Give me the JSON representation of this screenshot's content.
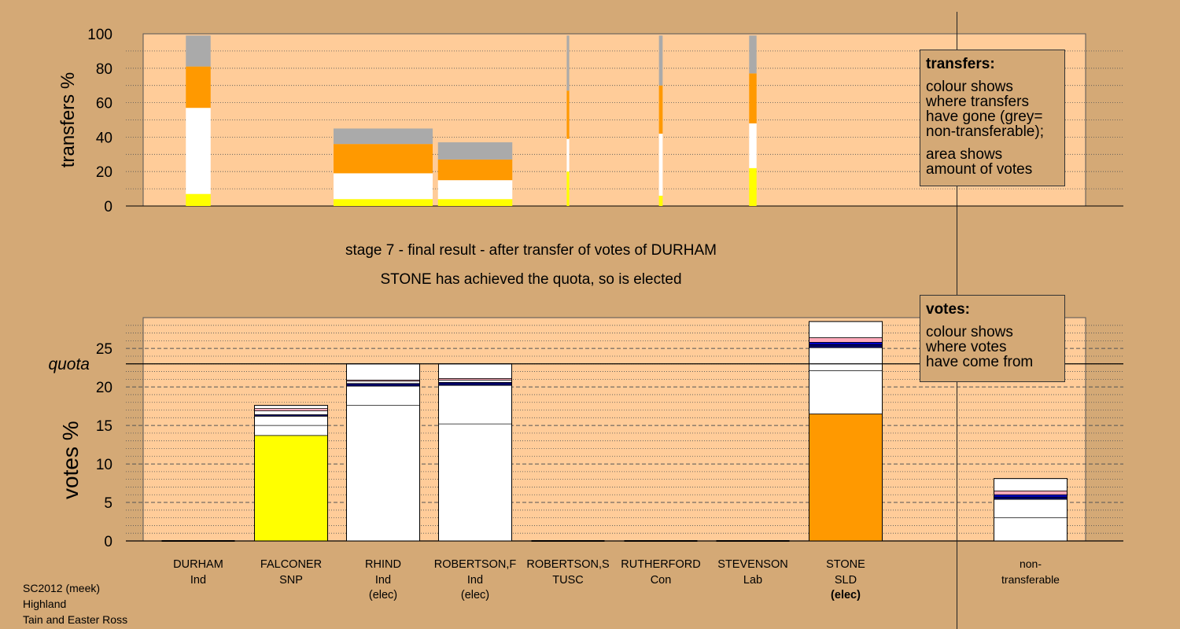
{
  "colors": {
    "background": "#d4a976",
    "plot_background": "#ffcc99",
    "yellow": "#ffff00",
    "orange": "#ff9900",
    "white": "#ffffff",
    "grey": "#aaaaaa",
    "pink": "#ffaabb",
    "navy": "#000066",
    "blue": "#0000cc"
  },
  "heading": {
    "line1": "stage 7 - final result - after transfer of votes of DURHAM",
    "line2": "STONE has achieved the quota, so is elected"
  },
  "legend_transfers": {
    "title": "transfers:",
    "lines1": [
      "colour shows",
      "where transfers",
      "have gone (grey=",
      "non-transferable);"
    ],
    "lines2": [
      "area shows",
      "amount of votes"
    ]
  },
  "legend_votes": {
    "title": "votes:",
    "lines": [
      "colour shows",
      "where votes",
      "have come from"
    ]
  },
  "footer": {
    "line1": "SC2012 (meek)",
    "line2": "Highland",
    "line3": "Tain and Easter Ross"
  },
  "chart_data": [
    {
      "type": "bar",
      "stacked": true,
      "ylabel": "transfers %",
      "ylim": [
        0,
        100
      ],
      "yticks": [
        0,
        20,
        40,
        60,
        80,
        100
      ],
      "grid": "dotted horizontal",
      "segment_colors": [
        "yellow",
        "white",
        "orange",
        "grey"
      ],
      "bars": [
        {
          "candidate": "DURHAM",
          "width_share": 1,
          "segments": [
            7,
            50,
            24,
            18
          ]
        },
        {
          "candidate": "RHIND",
          "width_share": 4,
          "segments": [
            4,
            15,
            17,
            9
          ]
        },
        {
          "candidate": "ROBERTSON,F",
          "width_share": 3,
          "segments": [
            4,
            11,
            12,
            10
          ]
        },
        {
          "candidate": "ROBERTSON,S",
          "width_share": 0.1,
          "segments": [
            20,
            19,
            28,
            32
          ]
        },
        {
          "candidate": "RUTHERFORD",
          "width_share": 0.15,
          "segments": [
            6,
            36,
            28,
            29
          ]
        },
        {
          "candidate": "STEVENSON",
          "width_share": 0.3,
          "segments": [
            22,
            26,
            29,
            22
          ]
        }
      ]
    },
    {
      "type": "bar",
      "stacked": true,
      "ylabel": "votes %",
      "ylim": [
        0,
        29
      ],
      "yticks": [
        0,
        5,
        10,
        15,
        20,
        25
      ],
      "quota": 23,
      "quota_label": "quota",
      "grid": "dashed every 5, dotted every 1",
      "categories": [
        {
          "name": "DURHAM",
          "party": "Ind",
          "status": "",
          "segments": []
        },
        {
          "name": "FALCONER",
          "party": "SNP",
          "status": "",
          "segments": [
            {
              "value": 13.7,
              "color": "yellow"
            },
            {
              "value": 1.3,
              "color": "white"
            },
            {
              "value": 1.2,
              "color": "white"
            },
            {
              "value": 0.2,
              "color": "navy"
            },
            {
              "value": 0.5,
              "color": "white"
            },
            {
              "value": 0.3,
              "color": "pink"
            },
            {
              "value": 0.4,
              "color": "white"
            }
          ]
        },
        {
          "name": "RHIND",
          "party": "Ind",
          "status": "(elec)",
          "segments": [
            {
              "value": 17.6,
              "color": "white"
            },
            {
              "value": 2.5,
              "color": "white"
            },
            {
              "value": 0.35,
              "color": "navy"
            },
            {
              "value": 0.3,
              "color": "white"
            },
            {
              "value": 0.15,
              "color": "pink"
            },
            {
              "value": 2.1,
              "color": "white"
            }
          ]
        },
        {
          "name": "ROBERTSON,F",
          "party": "Ind",
          "status": "(elec)",
          "segments": [
            {
              "value": 15.2,
              "color": "white"
            },
            {
              "value": 5.0,
              "color": "white"
            },
            {
              "value": 0.4,
              "color": "navy"
            },
            {
              "value": 0.3,
              "color": "white"
            },
            {
              "value": 0.2,
              "color": "pink"
            },
            {
              "value": 1.9,
              "color": "white"
            }
          ]
        },
        {
          "name": "ROBERTSON,S",
          "party": "TUSC",
          "status": "",
          "segments": []
        },
        {
          "name": "RUTHERFORD",
          "party": "Con",
          "status": "",
          "segments": []
        },
        {
          "name": "STEVENSON",
          "party": "Lab",
          "status": "",
          "segments": []
        },
        {
          "name": "STONE",
          "party": "SLD",
          "status": "(elec)",
          "segments": [
            {
              "value": 16.5,
              "color": "orange"
            },
            {
              "value": 5.6,
              "color": "white"
            },
            {
              "value": 3.0,
              "color": "white"
            },
            {
              "value": 0.4,
              "color": "navy"
            },
            {
              "value": 0.3,
              "color": "blue"
            },
            {
              "value": 0.6,
              "color": "pink"
            },
            {
              "value": 2.1,
              "color": "white"
            }
          ]
        },
        {
          "name": "non-",
          "party": "transferable",
          "status": "",
          "segments": [
            {
              "value": 3.0,
              "color": "white"
            },
            {
              "value": 2.4,
              "color": "white"
            },
            {
              "value": 0.3,
              "color": "navy"
            },
            {
              "value": 0.3,
              "color": "blue"
            },
            {
              "value": 0.5,
              "color": "pink"
            },
            {
              "value": 1.6,
              "color": "white"
            }
          ]
        }
      ]
    }
  ]
}
